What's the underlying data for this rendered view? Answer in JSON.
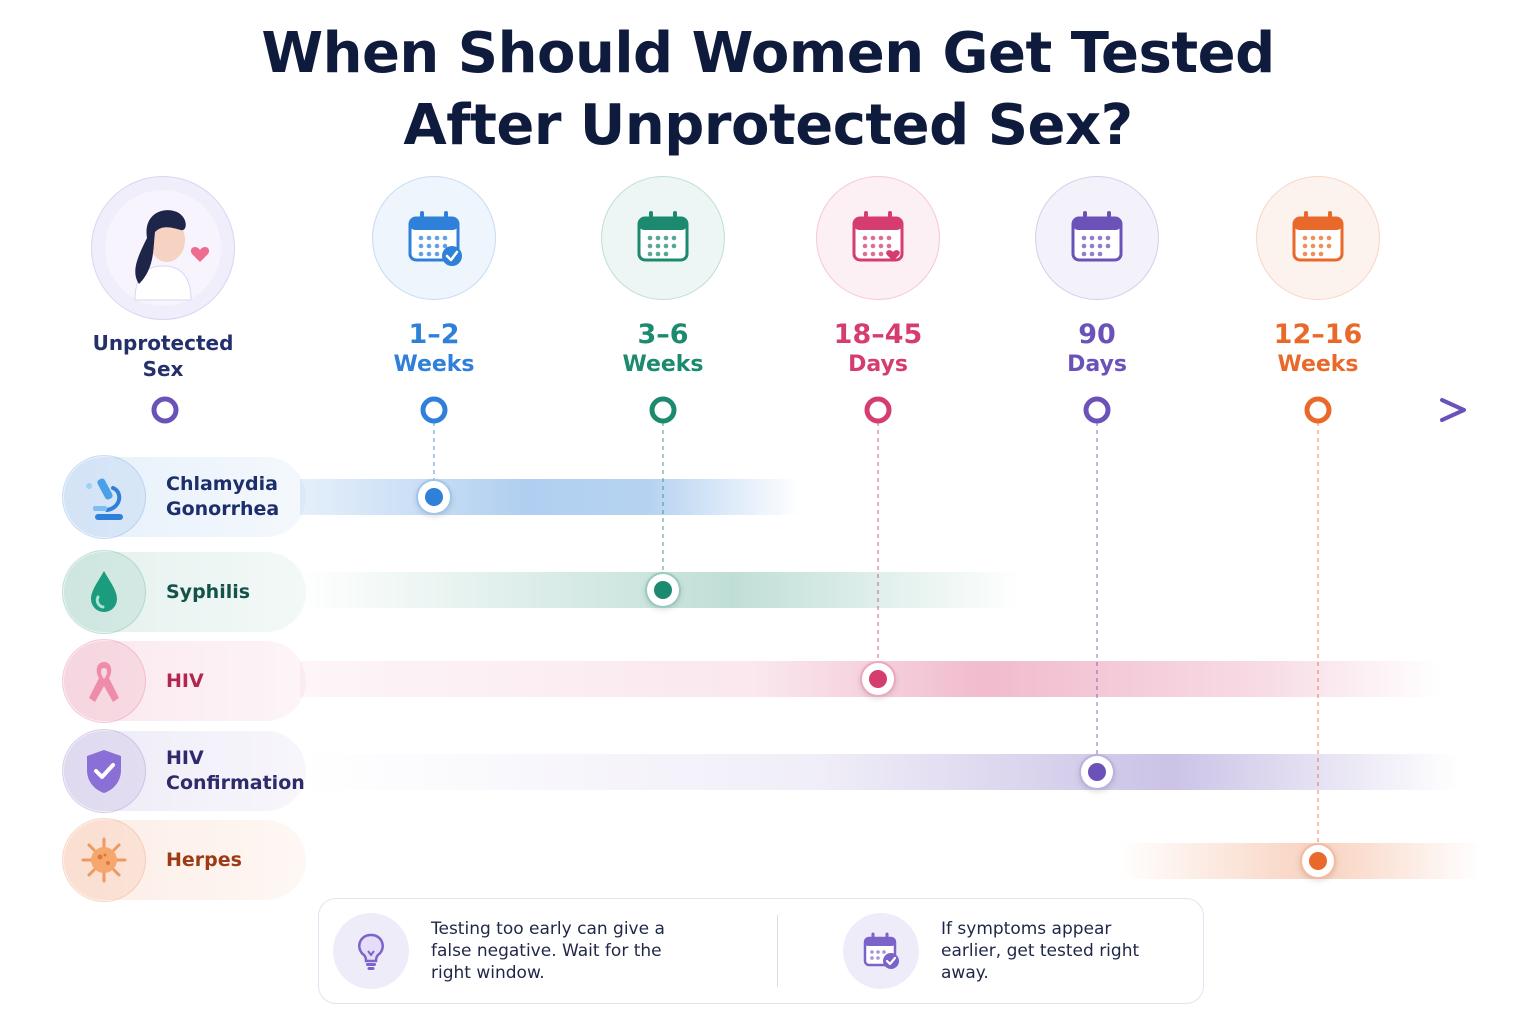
{
  "title": {
    "line1": "When Should Women Get Tested",
    "line2": "After Unprotected Sex?"
  },
  "start": {
    "label_line1": "Unprotected",
    "label_line2": "Sex",
    "icon": "woman-heart-icon",
    "color": "#6b52b8"
  },
  "milestones": [
    {
      "value": "1–2",
      "unit": "Weeks",
      "color": "#2f80d8",
      "icon": "calendar-check-icon"
    },
    {
      "value": "3–6",
      "unit": "Weeks",
      "color": "#1b8a6e",
      "icon": "calendar-icon"
    },
    {
      "value": "18–45",
      "unit": "Days",
      "color": "#d63d6f",
      "icon": "calendar-heart-icon"
    },
    {
      "value": "90",
      "unit": "Days",
      "color": "#6b52b8",
      "icon": "calendar-icon"
    },
    {
      "value": "12–16",
      "unit": "Weeks",
      "color": "#e8692a",
      "icon": "calendar-icon"
    }
  ],
  "diseases": [
    {
      "line1": "Chlamydia",
      "line2": "Gonorrhea",
      "color": "#2f80d8",
      "text_color": "#1d2f6b",
      "icon": "microscope-icon",
      "window": "1–2 Weeks"
    },
    {
      "line1": "Syphilis",
      "line2": "",
      "color": "#1b8a6e",
      "text_color": "#14524a",
      "icon": "droplet-icon",
      "window": "3–6 Weeks"
    },
    {
      "line1": "HIV",
      "line2": "",
      "color": "#d63d6f",
      "text_color": "#b3264f",
      "icon": "awareness-ribbon-icon",
      "window": "18–45 Days"
    },
    {
      "line1": "HIV",
      "line2": "Confirmation",
      "color": "#6b52b8",
      "text_color": "#2e2a6b",
      "icon": "shield-check-icon",
      "window": "90 Days"
    },
    {
      "line1": "Herpes",
      "line2": "",
      "color": "#e8692a",
      "text_color": "#9c3b14",
      "icon": "virus-icon",
      "window": "12–16 Weeks"
    }
  ],
  "tips": [
    {
      "text": "Testing too early can give a false negative. Wait for the right window.",
      "icon": "lightbulb-icon"
    },
    {
      "text": "If symptoms appear earlier, get tested right away.",
      "icon": "calendar-check-icon"
    }
  ]
}
